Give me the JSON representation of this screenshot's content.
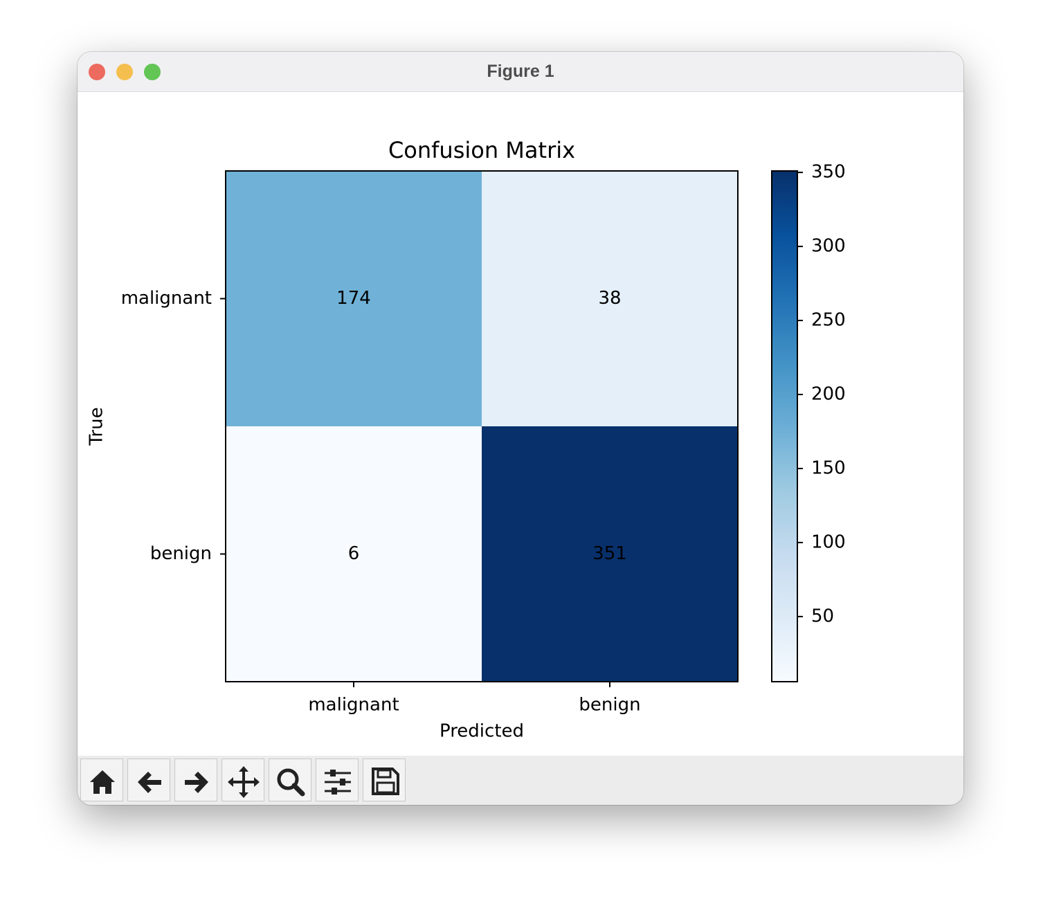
{
  "window": {
    "title": "Figure 1"
  },
  "chart_data": {
    "type": "heatmap",
    "title": "Confusion Matrix",
    "x_label": "Predicted",
    "y_label": "True",
    "x_categories": [
      "malignant",
      "benign"
    ],
    "y_categories": [
      "malignant",
      "benign"
    ],
    "values": [
      [
        174,
        38
      ],
      [
        6,
        351
      ]
    ],
    "colormap": "Blues",
    "colorbar": {
      "lim": [
        6,
        351
      ],
      "ticks": [
        50,
        100,
        150,
        200,
        250,
        300,
        350
      ]
    }
  }
}
